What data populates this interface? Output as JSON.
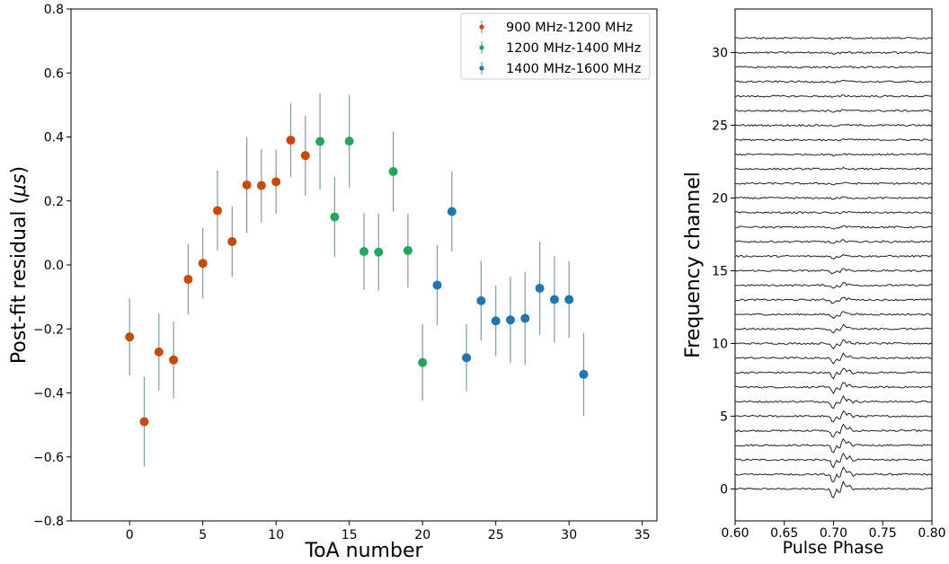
{
  "chart_data": [
    {
      "type": "scatter",
      "title": "",
      "xlabel": "ToA number",
      "ylabel": "Post-fit residual (μs)",
      "xlim": [
        -4,
        36
      ],
      "ylim": [
        -0.8,
        0.8
      ],
      "xticks": [
        0,
        5,
        10,
        15,
        20,
        25,
        30,
        35
      ],
      "yticks": [
        -0.8,
        -0.6,
        -0.4,
        -0.2,
        0.0,
        0.2,
        0.4,
        0.6,
        0.8
      ],
      "ytick_labels": [
        "−0.8",
        "−0.6",
        "−0.4",
        "−0.2",
        "0.0",
        "0.2",
        "0.4",
        "0.6",
        "0.8"
      ],
      "legend_position": "top-right",
      "errorbar_color": "#7f9c9c",
      "series": [
        {
          "name": "900 MHz-1200 MHz",
          "color": "#c84a08",
          "x": [
            0,
            1,
            2,
            3,
            4,
            5,
            6,
            7,
            8,
            9,
            10,
            11,
            12
          ],
          "y": [
            -0.225,
            -0.49,
            -0.272,
            -0.297,
            -0.045,
            0.005,
            0.17,
            0.073,
            0.25,
            0.248,
            0.26,
            0.39,
            0.342
          ],
          "yerr": [
            0.12,
            0.14,
            0.12,
            0.12,
            0.11,
            0.11,
            0.125,
            0.11,
            0.15,
            0.115,
            0.1,
            0.115,
            0.125
          ]
        },
        {
          "name": "1200 MHz-1400 MHz",
          "color": "#23a55c",
          "x": [
            13,
            14,
            15,
            16,
            17,
            18,
            19,
            20
          ],
          "y": [
            0.386,
            0.15,
            0.387,
            0.042,
            0.04,
            0.292,
            0.045,
            -0.305
          ],
          "yerr": [
            0.15,
            0.125,
            0.145,
            0.12,
            0.12,
            0.125,
            0.115,
            0.12
          ]
        },
        {
          "name": "1400 MHz-1600 MHz",
          "color": "#2175b0",
          "x": [
            21,
            22,
            23,
            24,
            25,
            26,
            27,
            28,
            29,
            30,
            31
          ],
          "y": [
            -0.063,
            0.167,
            -0.29,
            -0.112,
            -0.175,
            -0.172,
            -0.167,
            -0.073,
            -0.108,
            -0.108,
            -0.342
          ],
          "yerr": [
            0.125,
            0.125,
            0.105,
            0.125,
            0.11,
            0.135,
            0.145,
            0.145,
            0.135,
            0.12,
            0.13
          ]
        }
      ]
    },
    {
      "type": "line",
      "title": "",
      "xlabel": "Pulse Phase",
      "ylabel": "Frequency channel",
      "xlim": [
        0.6,
        0.8
      ],
      "ylim": [
        -2.2,
        33
      ],
      "xticks": [
        0.6,
        0.65,
        0.7,
        0.75,
        0.8
      ],
      "xtick_labels": [
        "0.60",
        "0.65",
        "0.70",
        "0.75",
        "0.80"
      ],
      "yticks": [
        0,
        5,
        10,
        15,
        20,
        25,
        30
      ],
      "channels": 32,
      "channel_spacing": 1,
      "line_color": "#222222",
      "description_note": "stacked pulse profiles, one per frequency channel, offset by channel index"
    }
  ]
}
